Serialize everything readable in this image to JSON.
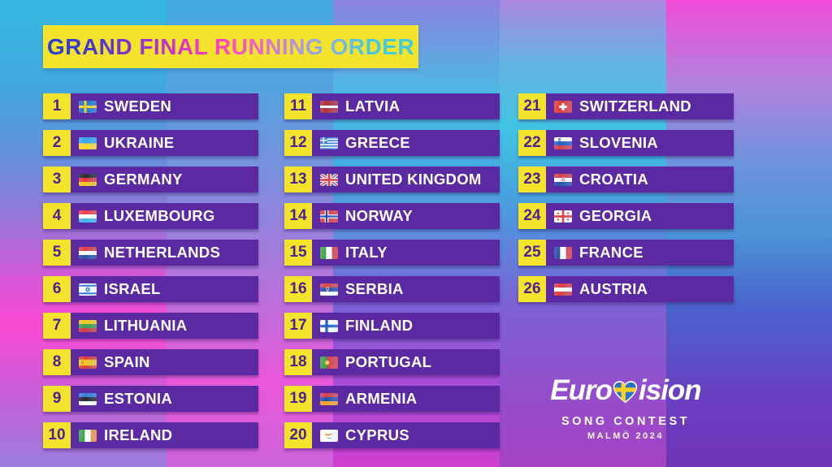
{
  "title": {
    "text": "GRAND FINAL RUNNING ORDER",
    "gradient": [
      "#2b42cf 0%",
      "#4338cf 12%",
      "#8a34d2 24%",
      "#d633cb 36%",
      "#ff40c6 47%",
      "#ee5ecb 56%",
      "#b892de 67%",
      "#7fb5e2 78%",
      "#45c6e0 88%",
      "#3fcbe0 100%"
    ]
  },
  "colors": {
    "accent-yellow": "#f4e32b",
    "bar-purple": "#5b2aa2",
    "number-purple": "#4c2390",
    "text-white": "#ffffff"
  },
  "background": {
    "bands": [
      [
        "#35b9e1 0%",
        "#41a8de 18%",
        "#6290dc 33%",
        "#9b74d8 48%",
        "#d756d6 60%",
        "#fb4bd3 70%",
        "#cb5cd8 83%",
        "#9b7edc 100%"
      ],
      [
        "#44a9e0 0%",
        "#54a2de 20%",
        "#8a88dc 44%",
        "#c06cda 66%",
        "#ea58da 82%",
        "#cd64d9 100%"
      ],
      [
        "#8a82e0 0%",
        "#45c0e2 22%",
        "#47a8e0 38%",
        "#5f8edd 50%",
        "#7a62d6 65%",
        "#b04ad6 85%",
        "#cf3fcf 100%"
      ],
      [
        "#ab86e0 0%",
        "#62b5e2 14%",
        "#40c4e2 28%",
        "#4a9ade 45%",
        "#7b62d4 65%",
        "#9150cc 82%",
        "#a443c4 100%"
      ],
      [
        "#f14cd8 0%",
        "#b183dd 18%",
        "#6d93dd 35%",
        "#4b94d6 50%",
        "#4a63cc 66%",
        "#6a3fc2 85%",
        "#6f35b5 100%"
      ]
    ]
  },
  "entries": [
    {
      "number": "1",
      "country": "SWEDEN",
      "flag": {
        "t": "nordic",
        "bg": "#2a72c9",
        "cross": "#fbd028",
        "cw": 4.5
      }
    },
    {
      "number": "2",
      "country": "UKRAINE",
      "flag": {
        "t": "h",
        "c": [
          "#3ba2e8",
          "#ffd52b"
        ]
      }
    },
    {
      "number": "3",
      "country": "GERMANY",
      "flag": {
        "t": "h",
        "c": [
          "#2b2b30",
          "#e8353e",
          "#f6c51c"
        ]
      }
    },
    {
      "number": "4",
      "country": "LUXEMBOURG",
      "flag": {
        "t": "h",
        "c": [
          "#ee4149",
          "#ffffff",
          "#44b5e8"
        ]
      }
    },
    {
      "number": "5",
      "country": "NETHERLANDS",
      "flag": {
        "t": "h",
        "c": [
          "#e03d48",
          "#ffffff",
          "#2b4fa8"
        ]
      }
    },
    {
      "number": "6",
      "country": "ISRAEL",
      "flag": {
        "t": "israel",
        "blue": "#2f6fd6"
      }
    },
    {
      "number": "7",
      "country": "LITHUANIA",
      "flag": {
        "t": "h",
        "c": [
          "#f2c71f",
          "#3d9e4d",
          "#d6383f"
        ]
      }
    },
    {
      "number": "8",
      "country": "SPAIN",
      "flag": {
        "t": "h",
        "c": [
          "#e23c3c",
          "#f6c51c",
          "#e23c3c"
        ],
        "r": [
          1,
          2,
          1
        ],
        "em": "spain"
      }
    },
    {
      "number": "9",
      "country": "ESTONIA",
      "flag": {
        "t": "h",
        "c": [
          "#3b7ad6",
          "#26262b",
          "#ffffff"
        ]
      }
    },
    {
      "number": "10",
      "country": "IRELAND",
      "flag": {
        "t": "v",
        "c": [
          "#3ca54c",
          "#ffffff",
          "#f78f3d"
        ]
      }
    },
    {
      "number": "11",
      "country": "LATVIA",
      "flag": {
        "t": "h",
        "c": [
          "#b13340",
          "#ffffff",
          "#b13340"
        ],
        "r": [
          2,
          1,
          2
        ]
      }
    },
    {
      "number": "12",
      "country": "GREECE",
      "flag": {
        "t": "greece",
        "blue": "#3b7ad6"
      }
    },
    {
      "number": "13",
      "country": "UNITED KINGDOM",
      "flag": {
        "t": "uk",
        "blue": "#2b4fa8",
        "red": "#e23c46"
      }
    },
    {
      "number": "14",
      "country": "NORWAY",
      "flag": {
        "t": "nordic",
        "bg": "#e23c46",
        "cross": "#2b4fa8",
        "outer": "#ffffff",
        "ow": 7,
        "cw": 3.5
      }
    },
    {
      "number": "15",
      "country": "ITALY",
      "flag": {
        "t": "v",
        "c": [
          "#3ca54c",
          "#ffffff",
          "#e23c46"
        ]
      }
    },
    {
      "number": "16",
      "country": "SERBIA",
      "flag": {
        "t": "h",
        "c": [
          "#d84850",
          "#2b4fa8",
          "#ffffff"
        ],
        "em": "serbia"
      }
    },
    {
      "number": "17",
      "country": "FINLAND",
      "flag": {
        "t": "nordic",
        "bg": "#ffffff",
        "cross": "#2b5fc8",
        "cw": 5
      }
    },
    {
      "number": "18",
      "country": "PORTUGAL",
      "flag": {
        "t": "portugal",
        "green": "#3ca54c",
        "red": "#e23c46",
        "gold": "#f6c51c"
      }
    },
    {
      "number": "19",
      "country": "ARMENIA",
      "flag": {
        "t": "h",
        "c": [
          "#d8414d",
          "#2b4fa8",
          "#f5a02a"
        ]
      }
    },
    {
      "number": "20",
      "country": "CYPRUS",
      "flag": {
        "t": "cyprus",
        "copper": "#e8974a",
        "green": "#5a9e4d"
      }
    },
    {
      "number": "21",
      "country": "SWITZERLAND",
      "flag": {
        "t": "swiss",
        "red": "#e23c3c"
      }
    },
    {
      "number": "22",
      "country": "SLOVENIA",
      "flag": {
        "t": "h",
        "c": [
          "#ffffff",
          "#2b5fc8",
          "#d8414d"
        ],
        "em": "slovenia"
      }
    },
    {
      "number": "23",
      "country": "CROATIA",
      "flag": {
        "t": "h",
        "c": [
          "#d8414d",
          "#ffffff",
          "#2b4fa8"
        ],
        "em": "croatia"
      }
    },
    {
      "number": "24",
      "country": "GEORGIA",
      "flag": {
        "t": "georgia",
        "red": "#e23c3c"
      }
    },
    {
      "number": "25",
      "country": "FRANCE",
      "flag": {
        "t": "v",
        "c": [
          "#2b4fa8",
          "#ffffff",
          "#e23c46"
        ]
      }
    },
    {
      "number": "26",
      "country": "AUSTRIA",
      "flag": {
        "t": "h",
        "c": [
          "#e23c46",
          "#ffffff",
          "#e23c46"
        ]
      }
    }
  ],
  "logo": {
    "line1_pre": "Euro",
    "line1_post": "ision",
    "line2": "SONG CONTEST",
    "line3": "MALMÖ 2024",
    "heart": {
      "bg": "#2a72c9",
      "cross": "#fbd028"
    }
  }
}
